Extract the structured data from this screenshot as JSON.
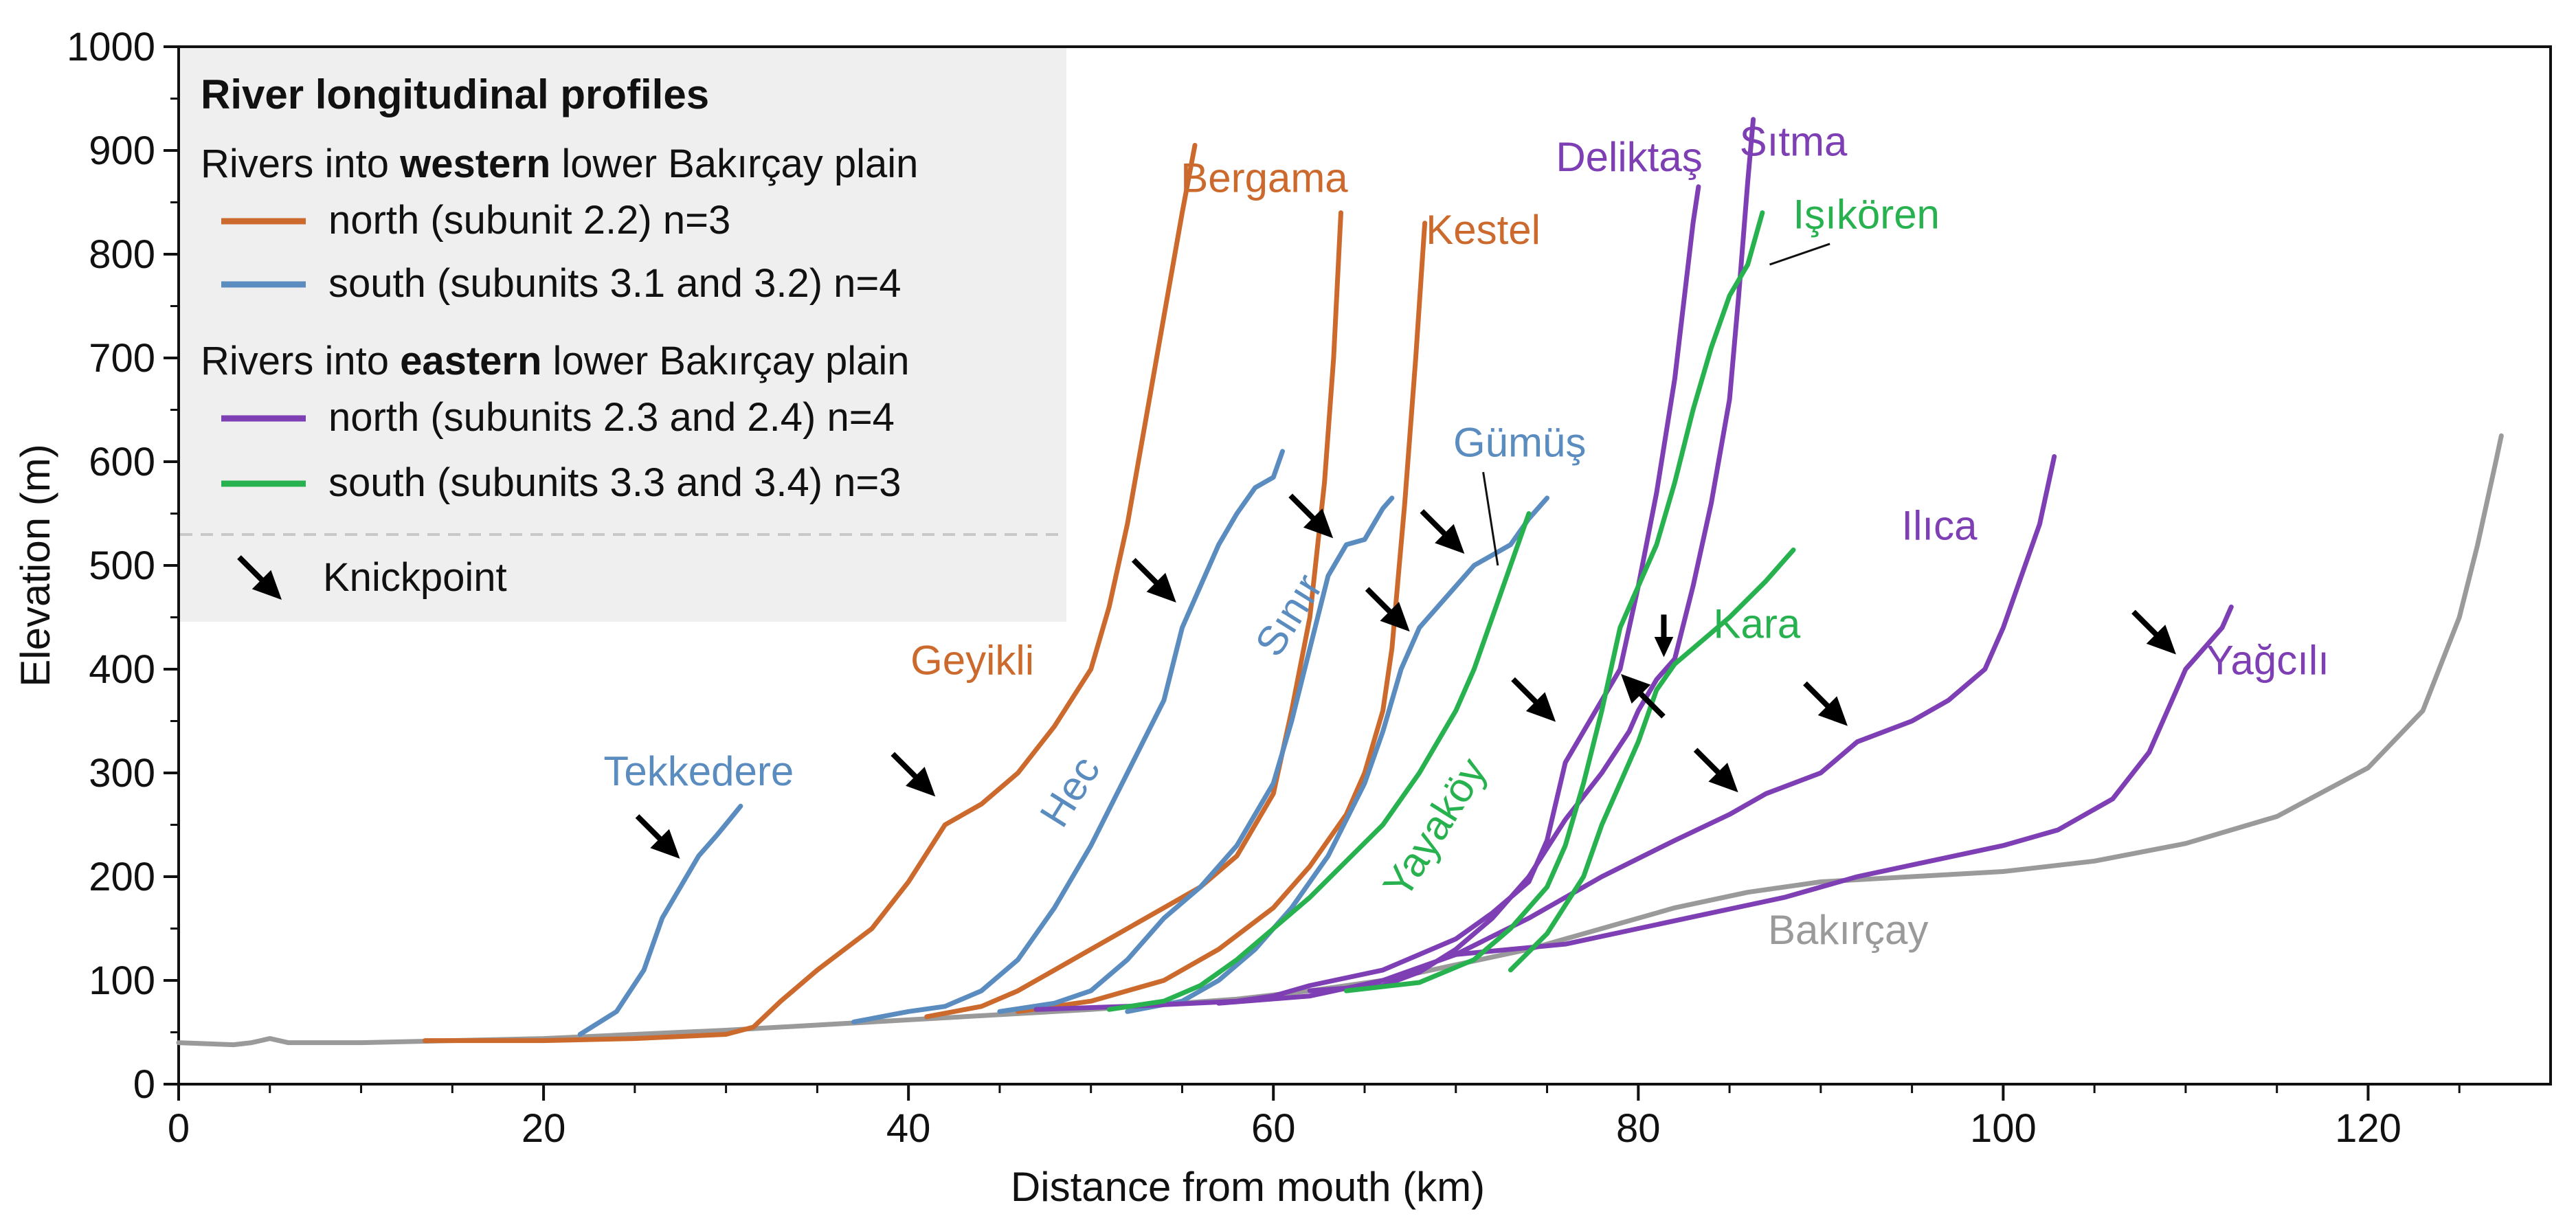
{
  "chart_data": {
    "type": "line",
    "title": "",
    "xlabel": "Distance from mouth (km)",
    "ylabel": "Elevation (m)",
    "xlim": [
      0,
      130
    ],
    "ylim": [
      0,
      1000
    ],
    "xticks": [
      "0",
      "20",
      "40",
      "60",
      "80",
      "100",
      "120"
    ],
    "yticks": [
      "0",
      "100",
      "200",
      "300",
      "400",
      "500",
      "600",
      "700",
      "800",
      "900",
      "1000"
    ],
    "legend": {
      "position": "top-left",
      "title": "River longitudinal profiles",
      "western_prefix": "Rivers into ",
      "western_bold": "western",
      "western_suffix": " lower Bakırçay plain",
      "eastern_prefix": "Rivers into ",
      "eastern_bold": "eastern",
      "eastern_suffix": " lower Bakırçay plain",
      "entries": [
        {
          "label": "north (subunit 2.2) n=3",
          "group": "wn"
        },
        {
          "label": "south (subunits 3.1 and 3.2) n=4",
          "group": "ws"
        },
        {
          "label": "north (subunits 2.3 and 2.4) n=4",
          "group": "en"
        },
        {
          "label": "south (subunits 3.3 and 3.4) n=3",
          "group": "es"
        }
      ],
      "knickpoint_label": "Knickpoint"
    },
    "colors": {
      "wn": "#cc6a2e",
      "ws": "#5a8cc0",
      "en": "#7e3eb4",
      "es": "#27b24f",
      "trunk": "#9a9a9a"
    },
    "series": [
      {
        "name": "Bakırçay",
        "group": "trunk",
        "label_x": 91.5,
        "label_y": 135,
        "points": [
          [
            0,
            40
          ],
          [
            3,
            38
          ],
          [
            4,
            40
          ],
          [
            5,
            44
          ],
          [
            6,
            40
          ],
          [
            10,
            40
          ],
          [
            20,
            44
          ],
          [
            30,
            52
          ],
          [
            40,
            62
          ],
          [
            50,
            72
          ],
          [
            58,
            82
          ],
          [
            62,
            90
          ],
          [
            66,
            100
          ],
          [
            70,
            115
          ],
          [
            74,
            130
          ],
          [
            78,
            150
          ],
          [
            82,
            170
          ],
          [
            86,
            185
          ],
          [
            90,
            195
          ],
          [
            100,
            205
          ],
          [
            105,
            215
          ],
          [
            110,
            232
          ],
          [
            115,
            258
          ],
          [
            120,
            305
          ],
          [
            123,
            360
          ],
          [
            125,
            450
          ],
          [
            126,
            520
          ],
          [
            127,
            600
          ],
          [
            127.3,
            625
          ]
        ]
      },
      {
        "name": "Tekkedere",
        "group": "ws",
        "label_x": 28.5,
        "label_y": 288,
        "points": [
          [
            22,
            48
          ],
          [
            24,
            70
          ],
          [
            25.5,
            110
          ],
          [
            26.5,
            160
          ],
          [
            27.5,
            190
          ],
          [
            28.5,
            220
          ],
          [
            29.5,
            240
          ],
          [
            30.2,
            255
          ],
          [
            30.8,
            268
          ]
        ]
      },
      {
        "name": "Geyikli",
        "group": "wn",
        "label_x": 43.5,
        "label_y": 395,
        "points": [
          [
            13.5,
            42
          ],
          [
            20,
            42
          ],
          [
            25,
            44
          ],
          [
            30,
            48
          ],
          [
            31.5,
            55
          ],
          [
            33,
            80
          ],
          [
            35,
            110
          ],
          [
            38,
            150
          ],
          [
            40,
            195
          ],
          [
            42,
            250
          ],
          [
            44,
            270
          ],
          [
            46,
            300
          ],
          [
            48,
            345
          ],
          [
            50,
            400
          ],
          [
            51,
            460
          ],
          [
            52,
            540
          ],
          [
            53,
            640
          ],
          [
            54,
            740
          ],
          [
            55,
            840
          ],
          [
            55.7,
            905
          ]
        ]
      },
      {
        "name": "Hec",
        "group": "ws",
        "label_x": 49.5,
        "label_y": 275,
        "rotate": -58,
        "points": [
          [
            37,
            60
          ],
          [
            40,
            70
          ],
          [
            42,
            75
          ],
          [
            44,
            90
          ],
          [
            46,
            120
          ],
          [
            48,
            170
          ],
          [
            50,
            230
          ],
          [
            52,
            300
          ],
          [
            54,
            370
          ],
          [
            55,
            440
          ],
          [
            56,
            480
          ],
          [
            57,
            520
          ],
          [
            58,
            550
          ],
          [
            59,
            575
          ],
          [
            60,
            585
          ],
          [
            60.5,
            610
          ]
        ]
      },
      {
        "name": "Bergama",
        "group": "wn",
        "label_x": 59.5,
        "label_y": 860,
        "points": [
          [
            41,
            65
          ],
          [
            44,
            75
          ],
          [
            46,
            90
          ],
          [
            48,
            110
          ],
          [
            50,
            130
          ],
          [
            52,
            150
          ],
          [
            54,
            170
          ],
          [
            56,
            190
          ],
          [
            58,
            220
          ],
          [
            60,
            280
          ],
          [
            61,
            360
          ],
          [
            62,
            450
          ],
          [
            62.8,
            580
          ],
          [
            63.3,
            700
          ],
          [
            63.7,
            840
          ]
        ]
      },
      {
        "name": "Sınır",
        "group": "ws",
        "label_x": 61.5,
        "label_y": 445,
        "rotate": -58,
        "points": [
          [
            45,
            70
          ],
          [
            48,
            78
          ],
          [
            50,
            90
          ],
          [
            52,
            120
          ],
          [
            54,
            160
          ],
          [
            56,
            190
          ],
          [
            58,
            230
          ],
          [
            60,
            290
          ],
          [
            61,
            350
          ],
          [
            62,
            420
          ],
          [
            63,
            490
          ],
          [
            64,
            520
          ],
          [
            65,
            525
          ],
          [
            66,
            555
          ],
          [
            66.5,
            565
          ]
        ]
      },
      {
        "name": "Kestel",
        "group": "wn",
        "label_x": 71.5,
        "label_y": 810,
        "points": [
          [
            46,
            70
          ],
          [
            50,
            80
          ],
          [
            54,
            100
          ],
          [
            57,
            130
          ],
          [
            60,
            170
          ],
          [
            62,
            210
          ],
          [
            64,
            260
          ],
          [
            65,
            300
          ],
          [
            66,
            360
          ],
          [
            66.5,
            420
          ],
          [
            67.2,
            560
          ],
          [
            67.8,
            700
          ],
          [
            68.3,
            830
          ]
        ]
      },
      {
        "name": "Gümüş",
        "group": "ws",
        "label_x": 73.5,
        "label_y": 605,
        "points": [
          [
            52,
            70
          ],
          [
            55,
            80
          ],
          [
            57,
            100
          ],
          [
            59,
            130
          ],
          [
            61,
            170
          ],
          [
            63,
            220
          ],
          [
            65,
            290
          ],
          [
            66,
            340
          ],
          [
            67,
            400
          ],
          [
            68,
            440
          ],
          [
            69,
            460
          ],
          [
            70,
            480
          ],
          [
            71,
            500
          ],
          [
            72,
            510
          ],
          [
            73,
            520
          ],
          [
            74,
            545
          ],
          [
            75,
            565
          ]
        ]
      },
      {
        "name": "Yayaköy",
        "group": "es",
        "label_x": 69.5,
        "label_y": 240,
        "rotate": -58,
        "points": [
          [
            51,
            72
          ],
          [
            54,
            80
          ],
          [
            56,
            95
          ],
          [
            58,
            120
          ],
          [
            60,
            150
          ],
          [
            62,
            180
          ],
          [
            64,
            215
          ],
          [
            66,
            250
          ],
          [
            68,
            300
          ],
          [
            70,
            360
          ],
          [
            71,
            400
          ],
          [
            72,
            450
          ],
          [
            73,
            500
          ],
          [
            74,
            550
          ]
        ]
      },
      {
        "name": "Deliktaş",
        "group": "en",
        "label_x": 79.5,
        "label_y": 880,
        "points": [
          [
            47,
            72
          ],
          [
            52,
            75
          ],
          [
            58,
            80
          ],
          [
            60,
            85
          ],
          [
            62,
            95
          ],
          [
            66,
            110
          ],
          [
            70,
            140
          ],
          [
            72,
            165
          ],
          [
            74,
            195
          ],
          [
            75,
            235
          ],
          [
            76,
            310
          ],
          [
            77,
            340
          ],
          [
            78,
            370
          ],
          [
            79,
            400
          ],
          [
            80,
            480
          ],
          [
            81,
            570
          ],
          [
            82,
            680
          ],
          [
            83,
            830
          ],
          [
            83.3,
            865
          ]
        ]
      },
      {
        "name": "Işıkören",
        "group": "es",
        "label_x": 92.5,
        "label_y": 825,
        "points": [
          [
            64,
            90
          ],
          [
            68,
            98
          ],
          [
            71,
            120
          ],
          [
            73,
            150
          ],
          [
            75,
            190
          ],
          [
            76,
            230
          ],
          [
            77,
            290
          ],
          [
            78,
            360
          ],
          [
            79,
            440
          ],
          [
            80,
            480
          ],
          [
            81,
            520
          ],
          [
            82,
            580
          ],
          [
            83,
            650
          ],
          [
            84,
            710
          ],
          [
            85,
            760
          ],
          [
            86,
            790
          ],
          [
            86.8,
            840
          ]
        ]
      },
      {
        "name": "Sıtma",
        "group": "en",
        "label_x": 88.5,
        "label_y": 895,
        "points": [
          [
            62,
            90
          ],
          [
            66,
            95
          ],
          [
            68,
            108
          ],
          [
            70,
            130
          ],
          [
            72,
            160
          ],
          [
            74,
            200
          ],
          [
            76,
            255
          ],
          [
            78,
            300
          ],
          [
            79.5,
            340
          ],
          [
            80,
            360
          ],
          [
            81,
            390
          ],
          [
            82,
            410
          ],
          [
            83,
            480
          ],
          [
            84,
            560
          ],
          [
            85,
            660
          ],
          [
            85.5,
            760
          ],
          [
            86,
            870
          ],
          [
            86.3,
            930
          ]
        ]
      },
      {
        "name": "Kara",
        "group": "es",
        "label_x": 86.5,
        "label_y": 430,
        "points": [
          [
            73,
            110
          ],
          [
            75,
            145
          ],
          [
            77,
            200
          ],
          [
            78,
            250
          ],
          [
            79,
            290
          ],
          [
            80,
            330
          ],
          [
            81,
            380
          ],
          [
            82,
            405
          ],
          [
            83,
            420
          ],
          [
            85,
            450
          ],
          [
            87,
            485
          ],
          [
            88.5,
            515
          ]
        ]
      },
      {
        "name": "Ilıca",
        "group": "en",
        "label_x": 96.5,
        "label_y": 525,
        "points": [
          [
            57,
            78
          ],
          [
            62,
            85
          ],
          [
            66,
            100
          ],
          [
            70,
            125
          ],
          [
            74,
            160
          ],
          [
            78,
            200
          ],
          [
            82,
            235
          ],
          [
            85,
            260
          ],
          [
            87,
            280
          ],
          [
            90,
            300
          ],
          [
            92,
            330
          ],
          [
            95,
            350
          ],
          [
            97,
            370
          ],
          [
            99,
            400
          ],
          [
            100,
            440
          ],
          [
            101,
            490
          ],
          [
            102,
            540
          ],
          [
            102.8,
            605
          ]
        ]
      },
      {
        "name": "Yağcılı",
        "group": "en",
        "label_x": 114.5,
        "label_y": 395,
        "points": [
          [
            70,
            125
          ],
          [
            76,
            135
          ],
          [
            80,
            150
          ],
          [
            84,
            165
          ],
          [
            88,
            180
          ],
          [
            92,
            200
          ],
          [
            96,
            215
          ],
          [
            100,
            230
          ],
          [
            103,
            245
          ],
          [
            106,
            275
          ],
          [
            108,
            320
          ],
          [
            109,
            360
          ],
          [
            110,
            400
          ],
          [
            111,
            420
          ],
          [
            112,
            440
          ],
          [
            112.5,
            460
          ]
        ]
      }
    ],
    "knickpoints": [
      {
        "name": "Tekkedere",
        "x": 28.0,
        "y": 208
      },
      {
        "name": "Geyikli",
        "x": 42.0,
        "y": 268
      },
      {
        "name": "Hec",
        "x": 55.2,
        "y": 455
      },
      {
        "name": "Sınır",
        "x": 63.8,
        "y": 517
      },
      {
        "name": "Gümüş",
        "x": 71.0,
        "y": 502
      },
      {
        "name": "Gümüş-lower",
        "x": 68.0,
        "y": 427
      },
      {
        "name": "Deliktaş",
        "x": 76.0,
        "y": 340
      },
      {
        "name": "Işıkören",
        "x": 79.8,
        "y": 402
      },
      {
        "name": "Kara",
        "x": 81.4,
        "y": 405
      },
      {
        "name": "Sıtma",
        "x": 86.0,
        "y": 272
      },
      {
        "name": "Ilıca",
        "x": 92.0,
        "y": 336
      },
      {
        "name": "Yağcılı",
        "x": 110.0,
        "y": 405
      }
    ]
  }
}
